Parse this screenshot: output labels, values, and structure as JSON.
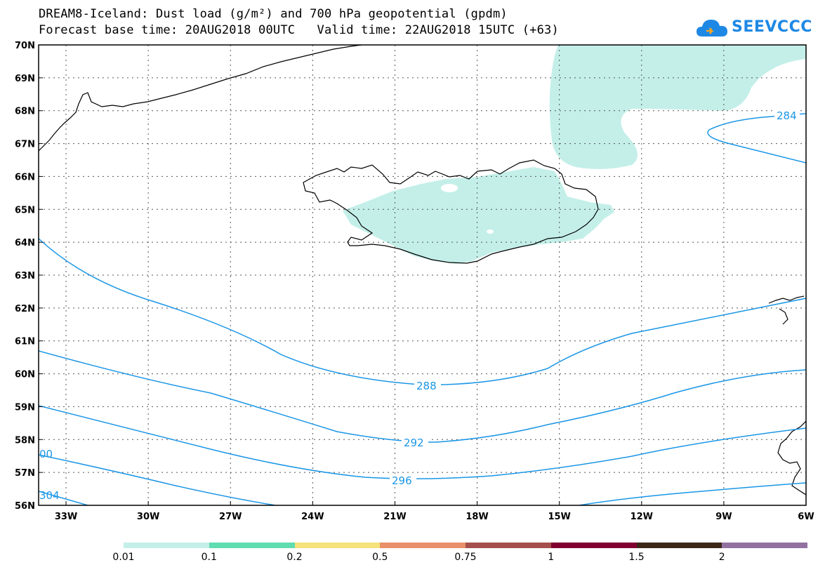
{
  "title_line1": "DREAM8-Iceland: Dust load (g/m²) and 700 hPa geopotential (gpdm)",
  "title_line2": "Forecast base time: 20AUG2018 00UTC   Valid time: 22AUG2018 15UTC (+63)",
  "logo_text": "SEEVCCC",
  "lat_labels": [
    "70N",
    "69N",
    "68N",
    "67N",
    "66N",
    "65N",
    "64N",
    "63N",
    "62N",
    "61N",
    "60N",
    "59N",
    "58N",
    "57N",
    "56N"
  ],
  "lon_labels": [
    "33W",
    "30W",
    "27W",
    "24W",
    "21W",
    "18W",
    "15W",
    "12W",
    "9W",
    "6W"
  ],
  "contour_labels": {
    "c284": "284",
    "c288": "288",
    "c292": "292",
    "c296": "296",
    "c300": "00",
    "c304": "304"
  },
  "colorbar": {
    "labels": [
      "0.01",
      "0.1",
      "0.2",
      "0.5",
      "0.75",
      "1",
      "1.5",
      "2"
    ],
    "colors": [
      "#c4efe9",
      "#5fdcb0",
      "#f5e27a",
      "#e8906a",
      "#a5504c",
      "#800030",
      "#3d2818",
      "#9271a1"
    ]
  },
  "colors": {
    "dust_light": "#c4efe9",
    "contour": "#1a96e6",
    "coast": "#000000"
  }
}
